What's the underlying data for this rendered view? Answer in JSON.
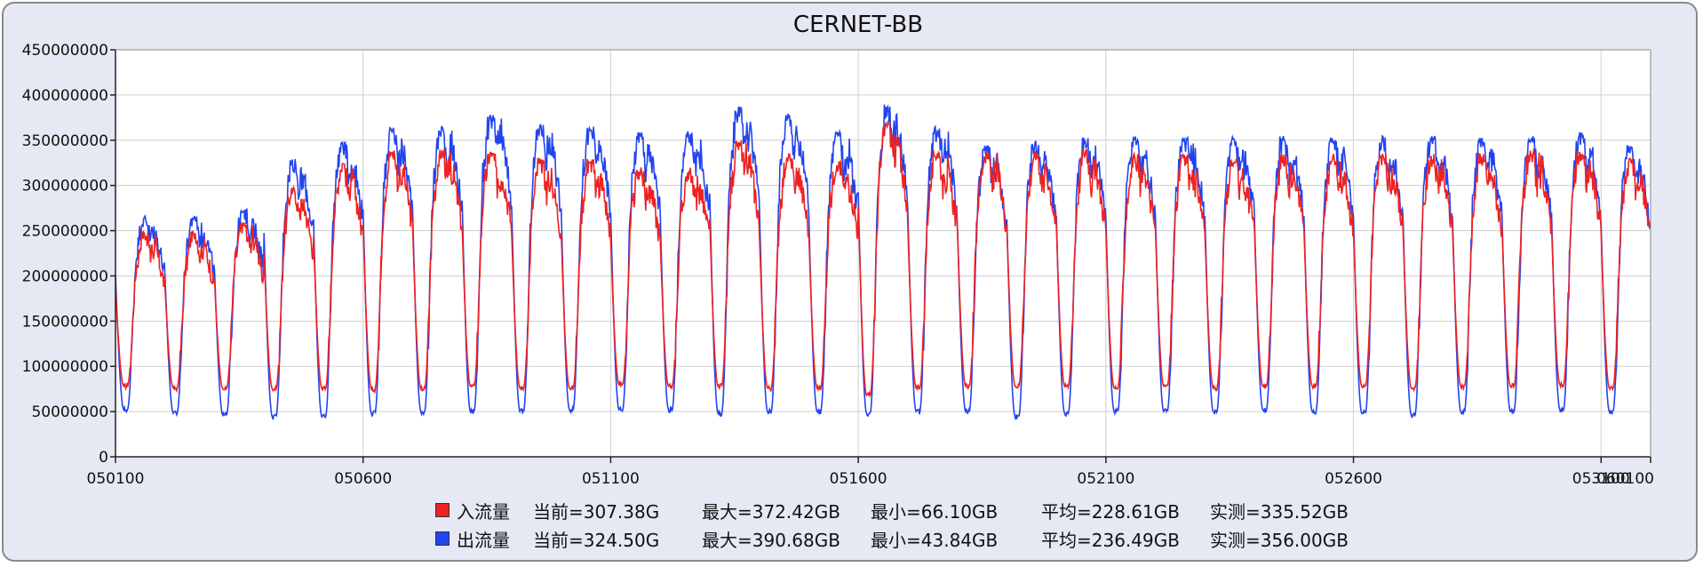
{
  "chart_data": {
    "type": "line",
    "title": "CERNET-BB",
    "xlabel": "",
    "ylabel": "",
    "ylim": [
      0,
      450000000
    ],
    "y_ticks": [
      "0",
      "50000000",
      "100000000",
      "150000000",
      "200000000",
      "250000000",
      "300000000",
      "350000000",
      "400000000",
      "450000000"
    ],
    "x_ticks": [
      "050100",
      "050600",
      "051100",
      "051600",
      "052100",
      "052600",
      "053100",
      "060100"
    ],
    "grid": true,
    "legend_position": "bottom",
    "day_count": 31,
    "series": [
      {
        "name": "入流量",
        "color": "#ee2222",
        "day_peaks": [
          250000000,
          250000000,
          260000000,
          300000000,
          325000000,
          340000000,
          340000000,
          340000000,
          330000000,
          330000000,
          320000000,
          320000000,
          350000000,
          335000000,
          330000000,
          370000000,
          340000000,
          340000000,
          340000000,
          340000000,
          335000000,
          335000000,
          330000000,
          335000000,
          335000000,
          335000000,
          335000000,
          335000000,
          340000000,
          340000000,
          330000000
        ],
        "day_troughs": [
          78000000,
          76000000,
          75000000,
          75000000,
          75000000,
          75000000,
          75000000,
          78000000,
          76000000,
          76000000,
          80000000,
          78000000,
          78000000,
          76000000,
          76000000,
          68000000,
          76000000,
          78000000,
          78000000,
          78000000,
          76000000,
          78000000,
          76000000,
          78000000,
          78000000,
          78000000,
          76000000,
          78000000,
          78000000,
          80000000,
          76000000
        ],
        "stats": {
          "current": "当前=307.38G",
          "max": "最大=372.42GB",
          "min": "最小=66.10GB",
          "avg": "平均=228.61GB",
          "measured": "实测=335.52GB"
        }
      },
      {
        "name": "出流量",
        "color": "#2244ee",
        "day_peaks": [
          268000000,
          268000000,
          275000000,
          330000000,
          350000000,
          365000000,
          365000000,
          378000000,
          370000000,
          365000000,
          360000000,
          360000000,
          388000000,
          380000000,
          360000000,
          390000000,
          365000000,
          345000000,
          350000000,
          355000000,
          355000000,
          355000000,
          355000000,
          355000000,
          355000000,
          355000000,
          355000000,
          355000000,
          355000000,
          360000000,
          345000000
        ],
        "day_troughs": [
          52000000,
          48000000,
          46000000,
          44000000,
          44000000,
          48000000,
          50000000,
          50000000,
          50000000,
          52000000,
          52000000,
          52000000,
          48000000,
          50000000,
          50000000,
          48000000,
          50000000,
          50000000,
          44000000,
          48000000,
          50000000,
          50000000,
          50000000,
          52000000,
          50000000,
          48000000,
          46000000,
          50000000,
          50000000,
          52000000,
          50000000
        ],
        "stats": {
          "current": "当前=324.50G",
          "max": "最大=390.68GB",
          "min": "最小=43.84GB",
          "avg": "平均=236.49GB",
          "measured": "实测=356.00GB"
        }
      }
    ]
  }
}
